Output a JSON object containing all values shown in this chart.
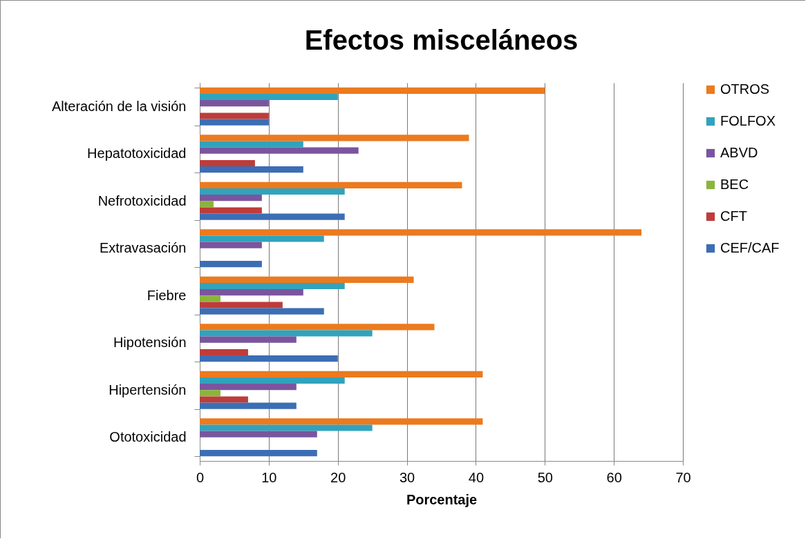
{
  "chart_data": {
    "type": "bar",
    "orientation": "horizontal",
    "title": "Efectos misceláneos",
    "xlabel": "Porcentaje",
    "categories": [
      "Alteración de la visión",
      "Hepatotoxicidad",
      "Nefrotoxicidad",
      "Extravasación",
      "Fiebre",
      "Hipotensión",
      "Hipertensión",
      "Ototoxicidad"
    ],
    "series": [
      {
        "name": "OTROS",
        "color": "#ec7a1e",
        "values": [
          50,
          39,
          38,
          64,
          31,
          34,
          41,
          41
        ]
      },
      {
        "name": "FOLFOX",
        "color": "#31a3bd",
        "values": [
          20,
          15,
          21,
          18,
          21,
          25,
          21,
          25
        ]
      },
      {
        "name": "ABVD",
        "color": "#7a559e",
        "values": [
          10,
          23,
          9,
          9,
          15,
          14,
          14,
          17
        ]
      },
      {
        "name": "BEC",
        "color": "#8cb43c",
        "values": [
          0,
          0,
          2,
          0,
          3,
          0,
          3,
          0
        ]
      },
      {
        "name": "CFT",
        "color": "#be3c3a",
        "values": [
          10,
          8,
          9,
          0,
          12,
          7,
          7,
          0
        ]
      },
      {
        "name": "CEF/CAF",
        "color": "#3c6eb4",
        "values": [
          10,
          15,
          21,
          9,
          18,
          20,
          14,
          17
        ]
      }
    ],
    "xlim": [
      0,
      70
    ],
    "xticks": [
      0,
      10,
      20,
      30,
      40,
      50,
      60,
      70
    ],
    "grid": "x",
    "legend": "right"
  }
}
